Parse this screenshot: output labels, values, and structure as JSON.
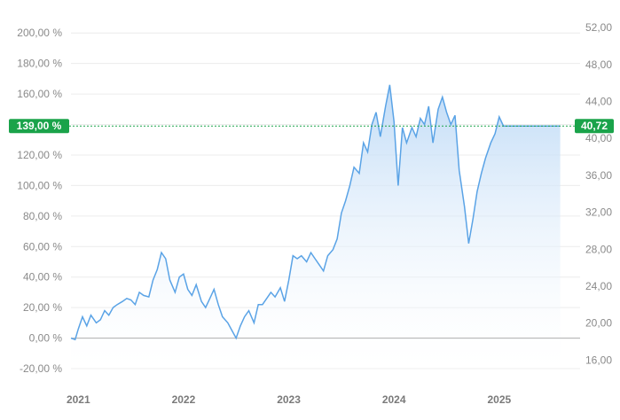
{
  "chart_data": {
    "type": "area",
    "title": "",
    "xlabel": "",
    "ylabel": "",
    "grid": true,
    "colors": {
      "line": "#5aa3e6",
      "fill_top": "#bcd9f6",
      "fill_bottom": "#ffffff",
      "current_marker": "#1aa34a",
      "gridline": "#ececec",
      "zero_line": "#b0b0b0"
    },
    "x_ticks": [
      "2021",
      "2022",
      "2023",
      "2024",
      "2025"
    ],
    "xlim": [
      2020.93,
      2025.6
    ],
    "y_left": {
      "ticks": [
        "200,00 %",
        "180,00 %",
        "160,00 %",
        "140,00 %",
        "120,00 %",
        "100,00 %",
        "80,00 %",
        "60,00 %",
        "40,00 %",
        "20,00 %",
        "0,00 %",
        "-20,00 %"
      ],
      "tick_values": [
        200,
        180,
        160,
        140,
        120,
        100,
        80,
        60,
        40,
        20,
        0,
        -20
      ],
      "ylim": [
        -20,
        210
      ]
    },
    "y_right": {
      "ticks": [
        "52,00",
        "48,00",
        "44,00",
        "40,00",
        "36,00",
        "32,00",
        "28,00",
        "24,00",
        "20,00",
        "16,00"
      ],
      "tick_values": [
        52,
        48,
        44,
        40,
        36,
        32,
        28,
        24,
        20,
        16
      ],
      "ylim": [
        15.08,
        53.06
      ]
    },
    "current_left_label": "139,00 %",
    "current_right_label": "40,72",
    "current_value_pct": 139,
    "series": [
      {
        "x": [
          2020.93,
          2020.97,
          2021.0,
          2021.04,
          2021.08,
          2021.12,
          2021.17,
          2021.21,
          2021.25,
          2021.29,
          2021.33,
          2021.37,
          2021.42,
          2021.46,
          2021.5,
          2021.54,
          2021.58,
          2021.62,
          2021.67,
          2021.71,
          2021.75,
          2021.79,
          2021.83,
          2021.87,
          2021.92,
          2021.96,
          2022.0,
          2022.04,
          2022.08,
          2022.12,
          2022.17,
          2022.21,
          2022.25,
          2022.29,
          2022.33,
          2022.37,
          2022.42,
          2022.46,
          2022.5,
          2022.54,
          2022.58,
          2022.62,
          2022.67,
          2022.71,
          2022.75,
          2022.79,
          2022.83,
          2022.87,
          2022.92,
          2022.96,
          2023.0,
          2023.04,
          2023.08,
          2023.12,
          2023.17,
          2023.21,
          2023.25,
          2023.29,
          2023.33,
          2023.37,
          2023.42,
          2023.46,
          2023.5,
          2023.54,
          2023.58,
          2023.62,
          2023.67,
          2023.71,
          2023.75,
          2023.79,
          2023.83,
          2023.87,
          2023.92,
          2023.96,
          2024.0,
          2024.04,
          2024.08,
          2024.12,
          2024.17,
          2024.21,
          2024.25,
          2024.29,
          2024.33,
          2024.37,
          2024.42,
          2024.46,
          2024.5,
          2024.54,
          2024.58,
          2024.62,
          2024.67,
          2024.71,
          2024.75,
          2024.79,
          2024.83,
          2024.87,
          2024.92,
          2024.96,
          2025.0,
          2025.04,
          2025.08,
          2025.12,
          2025.17,
          2025.21,
          2025.25,
          2025.29,
          2025.33,
          2025.37,
          2025.42,
          2025.46,
          2025.5,
          2025.54,
          2025.58
        ],
        "values": [
          0,
          -1,
          6,
          14,
          8,
          15,
          10,
          12,
          18,
          15,
          20,
          22,
          24,
          26,
          25,
          22,
          30,
          28,
          27,
          38,
          45,
          56,
          52,
          38,
          30,
          40,
          42,
          32,
          28,
          35,
          24,
          20,
          26,
          32,
          22,
          14,
          10,
          5,
          0,
          8,
          14,
          18,
          10,
          22,
          22,
          26,
          30,
          27,
          33,
          24,
          38,
          54,
          52,
          54,
          50,
          56,
          52,
          48,
          44,
          54,
          58,
          65,
          82,
          90,
          100,
          112,
          108,
          128,
          122,
          140,
          148,
          132,
          152,
          166,
          142,
          100,
          138,
          128,
          138,
          132,
          144,
          140,
          152,
          128,
          150,
          158,
          148,
          140,
          146,
          110,
          86,
          62,
          78,
          96,
          108,
          118,
          128,
          134,
          145,
          139,
          139,
          139,
          139,
          139,
          139,
          139,
          139,
          139,
          139,
          139,
          139,
          139,
          139
        ]
      }
    ]
  }
}
